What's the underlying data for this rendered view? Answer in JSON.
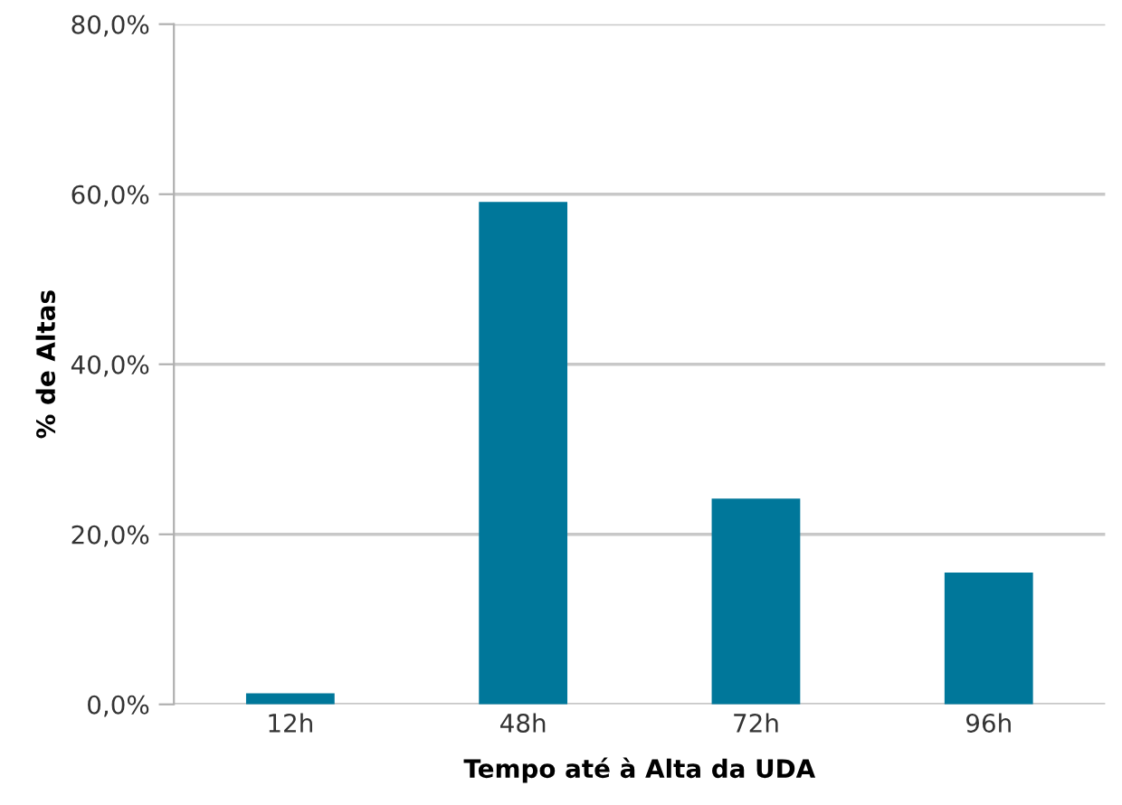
{
  "chart_data": {
    "type": "bar",
    "xlabel": "Tempo até à Alta da UDA",
    "ylabel": "% de Altas",
    "categories": [
      "12h",
      "48h",
      "72h",
      "96h"
    ],
    "values": [
      1.3,
      59.1,
      24.2,
      15.5
    ],
    "color": "#00779a",
    "ylim": [
      0,
      80
    ],
    "yticks": [
      {
        "value": 0,
        "label": "0,0%"
      },
      {
        "value": 20,
        "label": "20,0%"
      },
      {
        "value": 40,
        "label": "40,0%"
      },
      {
        "value": 60,
        "label": "60,0%"
      },
      {
        "value": 80,
        "label": "80,0%"
      }
    ],
    "grid": "y",
    "legend": false
  }
}
